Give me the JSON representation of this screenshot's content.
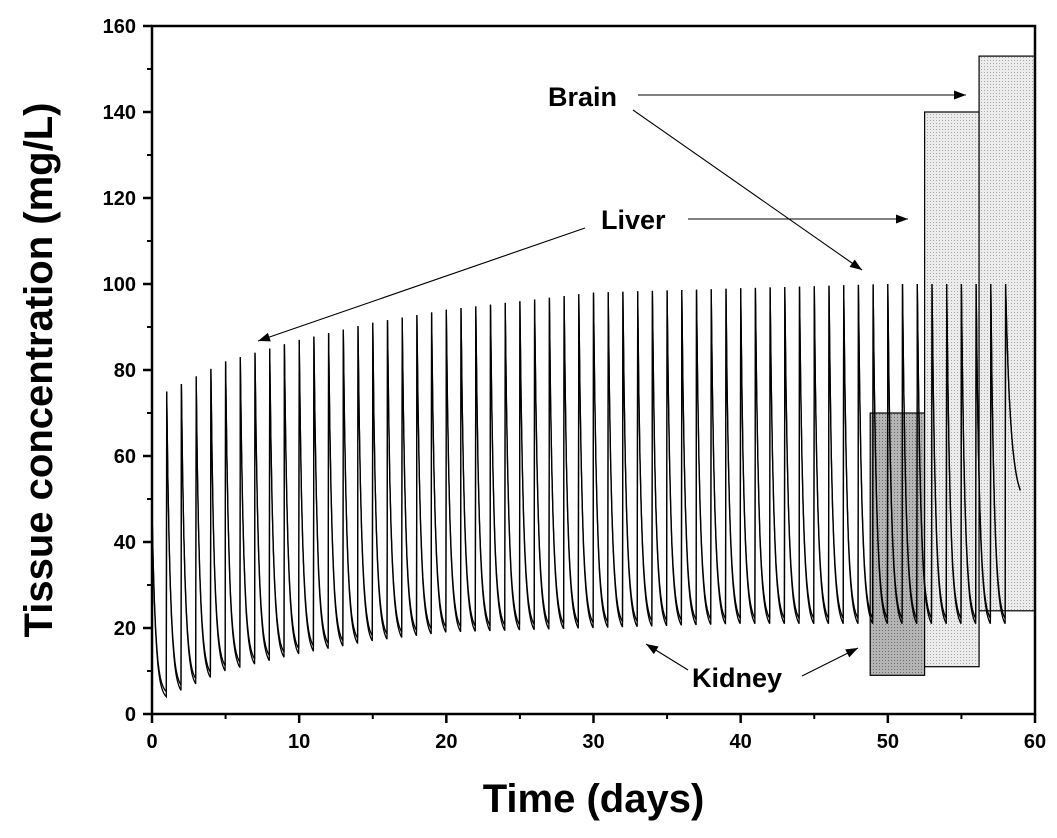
{
  "chart_data": {
    "type": "line",
    "title": "",
    "xlabel": "Time (days)",
    "ylabel": "Tissue concentration (mg/L)",
    "xlim": [
      0,
      60
    ],
    "ylim": [
      0,
      160
    ],
    "xticks": [
      0,
      10,
      20,
      30,
      40,
      50,
      60
    ],
    "yticks": [
      0,
      20,
      40,
      60,
      80,
      100,
      120,
      140,
      160
    ],
    "grid": false,
    "series": [
      {
        "name": "Liver",
        "dose_interval_days": 1,
        "peaks": [
          {
            "x": 1,
            "y": 75
          },
          {
            "x": 5,
            "y": 82
          },
          {
            "x": 10,
            "y": 87
          },
          {
            "x": 15,
            "y": 91
          },
          {
            "x": 20,
            "y": 94
          },
          {
            "x": 30,
            "y": 98
          },
          {
            "x": 40,
            "y": 99
          },
          {
            "x": 50,
            "y": 100
          },
          {
            "x": 58,
            "y": 100
          }
        ],
        "troughs": [
          {
            "x": 1,
            "y": 4
          },
          {
            "x": 5,
            "y": 10
          },
          {
            "x": 10,
            "y": 14
          },
          {
            "x": 15,
            "y": 17
          },
          {
            "x": 20,
            "y": 19
          },
          {
            "x": 30,
            "y": 20
          },
          {
            "x": 40,
            "y": 21
          },
          {
            "x": 50,
            "y": 21
          },
          {
            "x": 59,
            "y": 21
          }
        ]
      }
    ],
    "ranges": [
      {
        "name": "Kidney",
        "x": [
          48.8,
          52.5
        ],
        "y": [
          9,
          70
        ]
      },
      {
        "name": "Liver",
        "x": [
          52.5,
          56.2
        ],
        "y": [
          11,
          140
        ]
      },
      {
        "name": "Brain",
        "x": [
          56.2,
          60
        ],
        "y": [
          24,
          153
        ]
      }
    ],
    "annotations": [
      {
        "text": "Brain"
      },
      {
        "text": "Liver"
      },
      {
        "text": "Kidney"
      }
    ]
  }
}
